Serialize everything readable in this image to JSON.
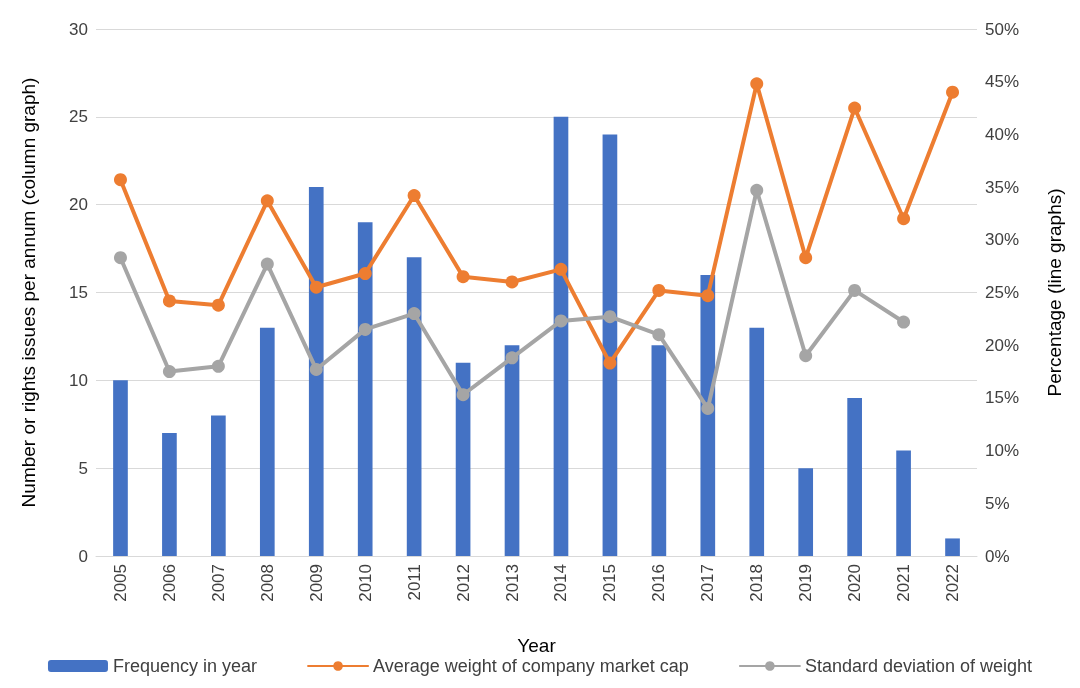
{
  "chart_data": {
    "type": "bar",
    "xlabel": "Year",
    "ylabel": "Number or rights issues per annum (column graph)",
    "y2label": "Percentage (line graphs)",
    "categories": [
      "2005",
      "2006",
      "2007",
      "2008",
      "2009",
      "2010",
      "2011",
      "2012",
      "2013",
      "2014",
      "2015",
      "2016",
      "2017",
      "2018",
      "2019",
      "2020",
      "2021",
      "2022"
    ],
    "series": [
      {
        "name": "Frequency in year",
        "color": "#4472c4",
        "values": [
          10,
          7,
          8,
          13,
          21,
          19,
          17,
          11,
          12,
          25,
          24,
          12,
          16,
          13,
          5,
          9,
          6,
          1
        ]
      },
      {
        "name": "Average weight of company market cap",
        "type": "line",
        "axis": "y2",
        "color": "#ed7d31",
        "values": [
          35.7,
          24.2,
          23.8,
          33.7,
          25.5,
          26.8,
          34.2,
          26.5,
          26,
          27.2,
          18.3,
          25.2,
          24.7,
          44.8,
          28.3,
          42.5,
          32,
          44
        ]
      },
      {
        "name": "Standard deviation of weight",
        "type": "line",
        "axis": "y2",
        "color": "#a5a5a5",
        "values": [
          28.3,
          17.5,
          18,
          27.7,
          17.7,
          21.5,
          23,
          15.3,
          18.8,
          22.3,
          22.7,
          21,
          14,
          34.7,
          19,
          25.2,
          22.2,
          null
        ]
      }
    ],
    "ylim": [
      0,
      30
    ],
    "yticks": [
      0,
      5,
      10,
      15,
      20,
      25,
      30
    ],
    "y2lim": [
      0,
      50
    ],
    "y2ticks": [
      {
        "value": 0,
        "label": "0%"
      },
      {
        "value": 5,
        "label": "5%"
      },
      {
        "value": 10,
        "label": "10%"
      },
      {
        "value": 15,
        "label": "15%"
      },
      {
        "value": 20,
        "label": "20%"
      },
      {
        "value": 25,
        "label": "25%"
      },
      {
        "value": 30,
        "label": "30%"
      },
      {
        "value": 35,
        "label": "35%"
      },
      {
        "value": 40,
        "label": "40%"
      },
      {
        "value": 45,
        "label": "45%"
      },
      {
        "value": 50,
        "label": "50%"
      }
    ],
    "grid": "y",
    "legend": "bottom",
    "marker": "circle",
    "line_style": "solid"
  }
}
